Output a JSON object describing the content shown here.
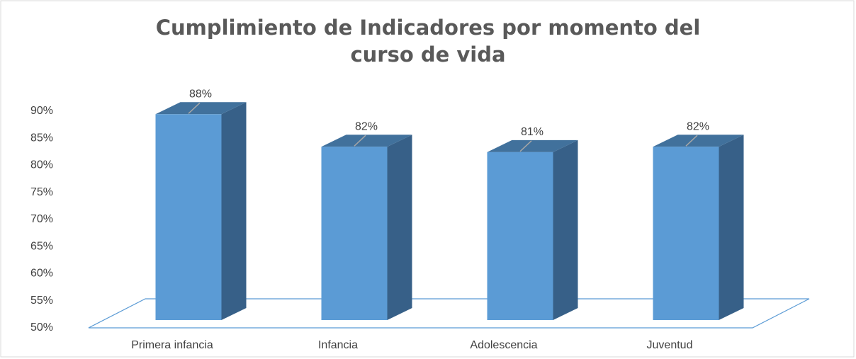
{
  "chart_data": {
    "type": "bar3d",
    "title": "Cumplimiento de Indicadores por momento del curso de vida",
    "categories": [
      "Primera infancia",
      "Infancia",
      "Adolescencia",
      "Juventud"
    ],
    "values": [
      88,
      82,
      81,
      82
    ],
    "value_labels": [
      "88%",
      "82%",
      "81%",
      "82%"
    ],
    "color": "#5b9bd5",
    "ylim": [
      50,
      90
    ],
    "yticks": [
      {
        "value": 50,
        "label": "50%"
      },
      {
        "value": 55,
        "label": "55%"
      },
      {
        "value": 60,
        "label": "60%"
      },
      {
        "value": 65,
        "label": "65%"
      },
      {
        "value": 70,
        "label": "70%"
      },
      {
        "value": 75,
        "label": "75%"
      },
      {
        "value": 80,
        "label": "80%"
      },
      {
        "value": 85,
        "label": "85%"
      },
      {
        "value": 90,
        "label": "90%"
      }
    ],
    "grid": false
  }
}
